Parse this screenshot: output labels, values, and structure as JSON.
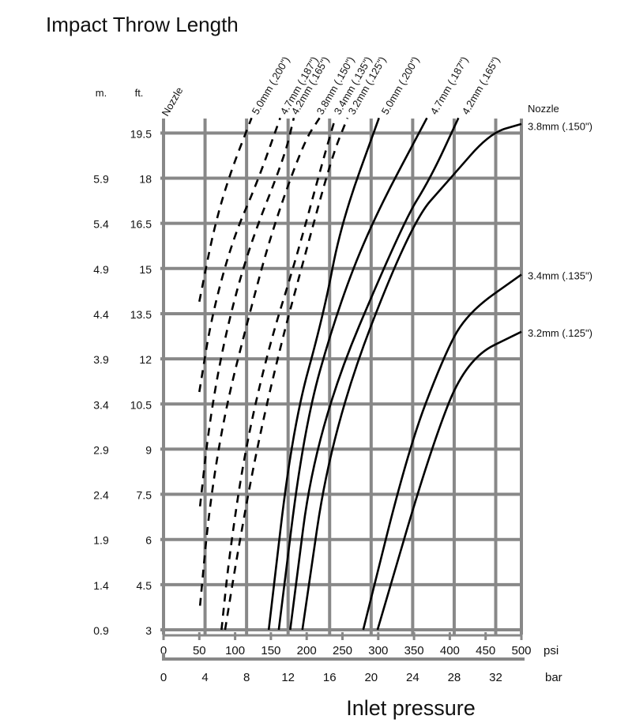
{
  "chart_data": {
    "type": "line",
    "title": "Impact Throw Length",
    "xlabel": "Inlet pressure",
    "x_unit_primary": "psi",
    "x_unit_secondary": "bar",
    "y_unit_primary": "ft.",
    "y_unit_secondary": "m.",
    "xlim": [
      0,
      500
    ],
    "ylim": [
      3,
      20
    ],
    "grid": true,
    "psi_ticks": [
      "0",
      "50",
      "100",
      "150",
      "200",
      "250",
      "300",
      "350",
      "400",
      "450",
      "500"
    ],
    "bar_ticks": [
      "0",
      "4",
      "8",
      "12",
      "16",
      "20",
      "24",
      "28",
      "32"
    ],
    "ft_ticks": [
      "3",
      "4.5",
      "6",
      "7.5",
      "9",
      "10.5",
      "12",
      "13.5",
      "15",
      "16.5",
      "18",
      "19.5"
    ],
    "m_ticks": [
      "0.9",
      "1.4",
      "1.9",
      "2.4",
      "2.9",
      "3.4",
      "3.9",
      "4.4",
      "4.9",
      "5.4",
      "5.9"
    ],
    "nozzle_label_left": "Nozzle",
    "nozzle_label_right": "Nozzle",
    "series": [
      {
        "name": "5.0mm (.200\")",
        "style": "dashed",
        "points": [
          [
            50,
            13.9
          ],
          [
            70,
            16.3
          ],
          [
            92,
            18.1
          ],
          [
            123,
            20
          ]
        ]
      },
      {
        "name": "4.7mm (.187\")",
        "style": "dashed",
        "points": [
          [
            50,
            10.9
          ],
          [
            67,
            13.4
          ],
          [
            97,
            16.0
          ],
          [
            130,
            17.8
          ],
          [
            163,
            20
          ]
        ]
      },
      {
        "name": "4.2mm (.165\")",
        "style": "dashed",
        "points": [
          [
            51,
            7.1
          ],
          [
            64,
            9.9
          ],
          [
            86,
            12.8
          ],
          [
            119,
            15.7
          ],
          [
            169,
            18.7
          ],
          [
            182,
            20
          ]
        ]
      },
      {
        "name": "3.8mm (.150\")",
        "style": "dashed",
        "points": [
          [
            51,
            3.8
          ],
          [
            64,
            7.1
          ],
          [
            86,
            10.3
          ],
          [
            119,
            13.4
          ],
          [
            152,
            16.3
          ],
          [
            196,
            19.2
          ],
          [
            218,
            20
          ]
        ]
      },
      {
        "name": "3.4mm (.135\")",
        "style": "dashed",
        "points": [
          [
            81,
            3
          ],
          [
            92,
            5.5
          ],
          [
            114,
            9
          ],
          [
            147,
            12.4
          ],
          [
            185,
            15.3
          ],
          [
            224,
            18.7
          ],
          [
            240,
            20
          ]
        ]
      },
      {
        "name": "3.2mm (.125\")",
        "style": "dashed",
        "points": [
          [
            86,
            3
          ],
          [
            103,
            5.5
          ],
          [
            130,
            9
          ],
          [
            163,
            12.4
          ],
          [
            196,
            15.3
          ],
          [
            235,
            18.7
          ],
          [
            257,
            20
          ]
        ]
      },
      {
        "name": "5.0mm (.200\")",
        "style": "solid",
        "points": [
          [
            147,
            3
          ],
          [
            180,
            9.7
          ],
          [
            224,
            13.5
          ],
          [
            248,
            16.5
          ],
          [
            301,
            20
          ]
        ]
      },
      {
        "name": "4.7mm (.187\")",
        "style": "solid",
        "points": [
          [
            161,
            3
          ],
          [
            196,
            9.7
          ],
          [
            241,
            13.5
          ],
          [
            290,
            16.5
          ],
          [
            368,
            20
          ]
        ]
      },
      {
        "name": "4.2mm (.165\")",
        "style": "solid",
        "points": [
          [
            177,
            3
          ],
          [
            213,
            9.7
          ],
          [
            334,
            16.5
          ],
          [
            373,
            18
          ],
          [
            412,
            20
          ]
        ]
      },
      {
        "name": "3.8mm (.150\")",
        "style": "solid",
        "points": [
          [
            194,
            3
          ],
          [
            235,
            9.7
          ],
          [
            345,
            16.5
          ],
          [
            401,
            18
          ],
          [
            456,
            19.5
          ],
          [
            500,
            19.8
          ]
        ]
      },
      {
        "name": "3.4mm (.135\")",
        "style": "solid",
        "points": [
          [
            279,
            3
          ],
          [
            342,
            9
          ],
          [
            390,
            12
          ],
          [
            423,
            13.5
          ],
          [
            500,
            14.8
          ]
        ]
      },
      {
        "name": "3.2mm (.125\")",
        "style": "solid",
        "points": [
          [
            299,
            3
          ],
          [
            373,
            9
          ],
          [
            423,
            12
          ],
          [
            500,
            12.9
          ]
        ]
      }
    ],
    "top_labels": [
      "5.0mm (.200\")",
      "4.7mm (.187\")",
      "4.2mm (.165\")",
      "3.8mm (.150\")",
      "3.4mm (.135\")",
      "3.2mm (.125\")",
      "5.0mm (.200\")",
      "4.7mm (.187\")",
      "4.2mm (.165\")"
    ],
    "right_labels": [
      {
        "text": "3.8mm (.150\")",
        "ft": 19.5
      },
      {
        "text": "3.4mm (.135\")",
        "ft": 14.8
      },
      {
        "text": "3.2mm (.125\")",
        "ft": 12.9
      }
    ]
  }
}
